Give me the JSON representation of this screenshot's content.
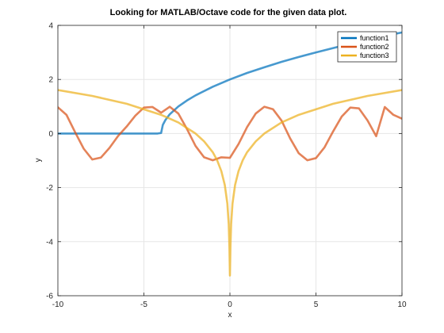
{
  "chart_data": {
    "type": "line",
    "title": "Looking for MATLAB/Octave code for the given data plot.",
    "xlabel": "x",
    "ylabel": "y",
    "xlim": [
      -10,
      10
    ],
    "ylim": [
      -6,
      4
    ],
    "xticks": [
      -10,
      -5,
      0,
      5,
      10
    ],
    "yticks": [
      -6,
      -4,
      -2,
      0,
      2,
      4
    ],
    "xtick_labels": [
      "-10",
      "-5",
      "0",
      "5",
      "10"
    ],
    "ytick_labels": [
      "-6",
      "-4",
      "-2",
      "0",
      "2",
      "4"
    ],
    "grid": true,
    "legend_position": "top-right",
    "series": [
      {
        "name": "function1",
        "color": "#0072BD",
        "x": [
          -10,
          -8,
          -6,
          -4.2,
          -4,
          -3.9,
          -3.75,
          -3.5,
          -3,
          -2.5,
          -2,
          -1,
          0,
          1,
          2,
          3,
          4,
          5,
          6,
          7,
          8,
          9,
          10
        ],
        "y": [
          0,
          0,
          0,
          0,
          0.02,
          0.32,
          0.5,
          0.71,
          1.0,
          1.22,
          1.41,
          1.73,
          2.0,
          2.24,
          2.45,
          2.65,
          2.83,
          3.0,
          3.16,
          3.32,
          3.46,
          3.61,
          3.74
        ]
      },
      {
        "name": "function2",
        "color": "#D95319",
        "x": [
          -10,
          -9.5,
          -9,
          -8.5,
          -8,
          -7.5,
          -7,
          -6.5,
          -6,
          -5.5,
          -5,
          -4.5,
          -4,
          -3.5,
          -3,
          -2.5,
          -2,
          -1.5,
          -1,
          -0.5,
          0,
          0.5,
          1,
          1.5,
          2,
          2.5,
          3,
          3.5,
          4,
          4.5,
          5,
          5.5,
          6,
          6.5,
          7,
          7.5,
          8,
          8.5,
          9,
          9.5,
          10
        ],
        "y": [
          0.97,
          0.69,
          0.05,
          -0.56,
          -0.96,
          -0.89,
          -0.53,
          -0.09,
          0.26,
          0.66,
          0.96,
          0.98,
          0.77,
          0.99,
          0.74,
          0.17,
          -0.46,
          -0.88,
          -0.99,
          -0.88,
          -0.9,
          -0.39,
          0.24,
          0.74,
          0.99,
          0.9,
          0.48,
          -0.18,
          -0.73,
          -0.99,
          -0.91,
          -0.51,
          0.08,
          0.63,
          0.96,
          0.93,
          0.48,
          -0.1,
          0.98,
          0.69,
          0.55
        ]
      },
      {
        "name": "function3",
        "color": "#EDB120",
        "x": [
          -10,
          -8,
          -6,
          -4,
          -3,
          -2,
          -1.5,
          -1,
          -0.75,
          -0.5,
          -0.3,
          -0.15,
          -0.07,
          -0.03,
          0,
          0.03,
          0.07,
          0.15,
          0.3,
          0.5,
          0.75,
          1,
          1.5,
          2,
          3,
          4,
          6,
          8,
          10
        ],
        "y": [
          1.61,
          1.39,
          1.1,
          0.69,
          0.41,
          0.0,
          -0.29,
          -0.69,
          -0.98,
          -1.39,
          -1.9,
          -2.59,
          -3.35,
          -4.2,
          -5.25,
          -4.2,
          -3.35,
          -2.59,
          -1.9,
          -1.39,
          -0.98,
          -0.69,
          -0.29,
          0.0,
          0.41,
          0.69,
          1.1,
          1.39,
          1.61
        ]
      }
    ]
  }
}
